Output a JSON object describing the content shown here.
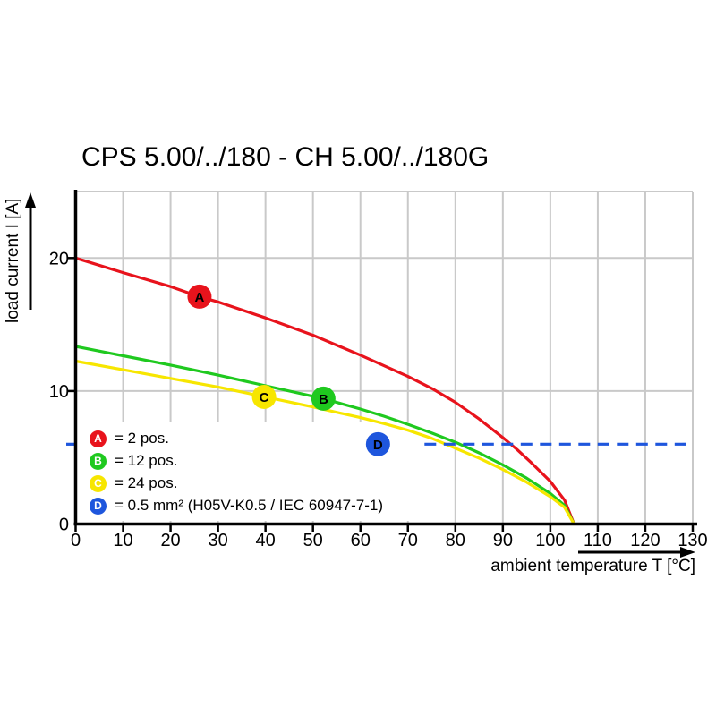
{
  "title": "CPS 5.00/../180 - CH 5.00/../180G",
  "colors": {
    "grid": "#c9c9c9",
    "axis": "#000000",
    "background": "#ffffff",
    "marker_letter": "#ffffff",
    "legend_background": "#ffffff",
    "text": "#000000"
  },
  "chart_data": {
    "type": "line",
    "title": "CPS 5.00/../180 - CH 5.00/../180G",
    "xlabel": "ambient temperature T [°C]",
    "ylabel": "load current I [A]",
    "xlim": [
      0,
      130
    ],
    "ylim": [
      0,
      25
    ],
    "xticks": [
      0,
      10,
      20,
      30,
      40,
      50,
      60,
      70,
      80,
      90,
      100,
      110,
      120,
      130
    ],
    "yticks": [
      0,
      10,
      20
    ],
    "grid": true,
    "legend_position": "inside lower-left",
    "series": [
      {
        "key": "A",
        "name": "2 pos.",
        "color": "#e8131c",
        "line": "solid",
        "points": [
          [
            0,
            20
          ],
          [
            10,
            18.9
          ],
          [
            20,
            17.85
          ],
          [
            26,
            17.1
          ],
          [
            30,
            16.7
          ],
          [
            40,
            15.5
          ],
          [
            50,
            14.2
          ],
          [
            60,
            12.7
          ],
          [
            65,
            11.9
          ],
          [
            70,
            11.1
          ],
          [
            75,
            10.2
          ],
          [
            80,
            9.15
          ],
          [
            85,
            7.9
          ],
          [
            90,
            6.5
          ],
          [
            93,
            5.6
          ],
          [
            96,
            4.6
          ],
          [
            100,
            3.2
          ],
          [
            103,
            1.8
          ],
          [
            105,
            0
          ]
        ],
        "marker": {
          "label": "A",
          "x": 26.1,
          "y": 17.1
        }
      },
      {
        "key": "B",
        "name": "12 pos.",
        "color": "#1fc91f",
        "line": "solid",
        "points": [
          [
            0,
            13.35
          ],
          [
            10,
            12.65
          ],
          [
            20,
            11.95
          ],
          [
            30,
            11.2
          ],
          [
            40,
            10.4
          ],
          [
            50,
            9.6
          ],
          [
            52,
            9.45
          ],
          [
            60,
            8.65
          ],
          [
            65,
            8.1
          ],
          [
            70,
            7.5
          ],
          [
            75,
            6.85
          ],
          [
            80,
            6.15
          ],
          [
            85,
            5.35
          ],
          [
            90,
            4.45
          ],
          [
            95,
            3.45
          ],
          [
            100,
            2.3
          ],
          [
            103,
            1.4
          ],
          [
            105,
            0
          ]
        ],
        "marker": {
          "label": "B",
          "x": 52.2,
          "y": 9.43
        }
      },
      {
        "key": "C",
        "name": "24 pos.",
        "color": "#f7e600",
        "line": "solid",
        "points": [
          [
            0,
            12.25
          ],
          [
            10,
            11.6
          ],
          [
            20,
            10.95
          ],
          [
            30,
            10.3
          ],
          [
            40,
            9.55
          ],
          [
            50,
            8.8
          ],
          [
            60,
            8.0
          ],
          [
            65,
            7.55
          ],
          [
            70,
            7.05
          ],
          [
            75,
            6.45
          ],
          [
            80,
            5.7
          ],
          [
            85,
            4.95
          ],
          [
            90,
            4.1
          ],
          [
            95,
            3.15
          ],
          [
            100,
            2.05
          ],
          [
            103,
            1.25
          ],
          [
            105,
            0
          ]
        ],
        "marker": {
          "label": "C",
          "x": 39.7,
          "y": 9.56
        }
      },
      {
        "key": "D",
        "name": "0.5 mm² (H05V-K0.5 / IEC 60947-7-1)",
        "color": "#1e56dd",
        "line": "dashed",
        "points": [
          [
            73.5,
            6
          ],
          [
            130,
            6
          ]
        ],
        "y_axis_tick": 6,
        "marker": {
          "label": "D",
          "x": 63.7,
          "y": 6.0
        }
      }
    ],
    "legend": [
      {
        "key": "A",
        "color": "#e8131c",
        "label": "= 2 pos."
      },
      {
        "key": "B",
        "color": "#1fc91f",
        "label": "= 12 pos."
      },
      {
        "key": "C",
        "color": "#f7e600",
        "label": "= 24 pos."
      },
      {
        "key": "D",
        "color": "#1e56dd",
        "label": "= 0.5 mm² (H05V-K0.5 / IEC 60947-7-1)"
      }
    ]
  }
}
